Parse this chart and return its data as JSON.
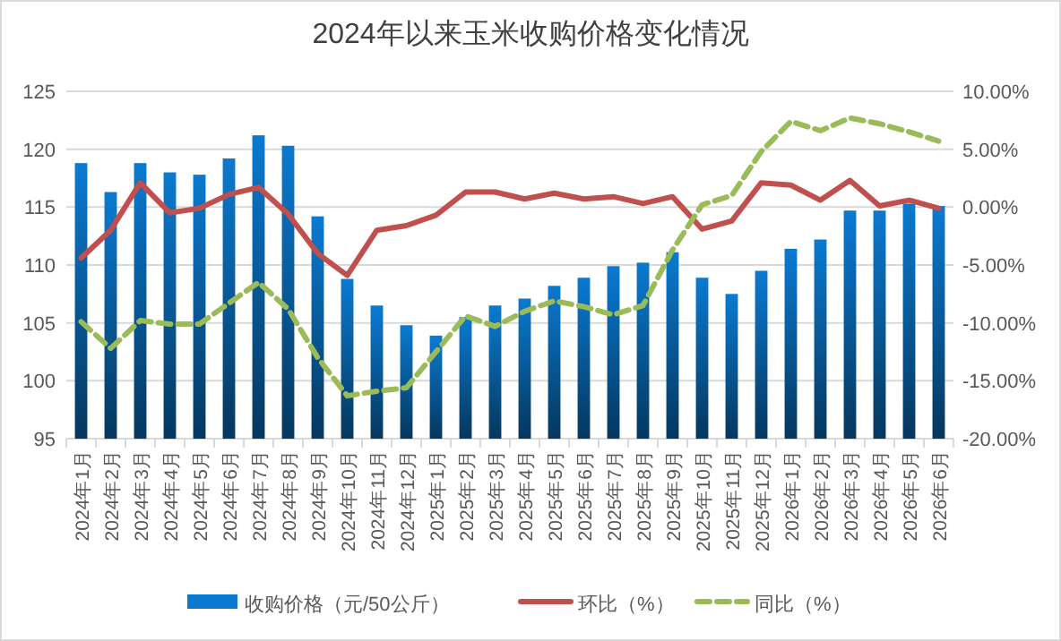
{
  "chart_data": {
    "type": "bar",
    "title": "2024年以来玉米收购价格变化情况",
    "categories": [
      "2024年1月",
      "2024年2月",
      "2024年3月",
      "2024年4月",
      "2024年5月",
      "2024年6月",
      "2024年7月",
      "2024年8月",
      "2024年9月",
      "2024年10月",
      "2024年11月",
      "2024年12月",
      "2025年1月",
      "2025年2月",
      "2025年3月",
      "2025年4月",
      "2025年5月",
      "2025年6月",
      "2025年7月",
      "2025年8月",
      "2025年9月",
      "2025年10月",
      "2025年11月",
      "2025年12月",
      "2026年1月",
      "2026年2月",
      "2026年3月",
      "2026年4月",
      "2026年5月",
      "2026年6月"
    ],
    "series": [
      {
        "name": "收购价格（元/50公斤）",
        "type": "bar",
        "color": "#0a7ad0",
        "values": [
          118.8,
          116.3,
          118.8,
          118.0,
          117.8,
          119.2,
          121.2,
          120.3,
          114.2,
          108.8,
          106.5,
          104.8,
          103.9,
          105.5,
          106.5,
          107.1,
          108.2,
          108.9,
          109.9,
          110.2,
          111.1,
          108.9,
          107.5,
          109.5,
          111.4,
          112.2,
          114.7,
          114.7,
          115.3,
          115.1
        ]
      },
      {
        "name": "环比（%）",
        "type": "line",
        "axis": "y2",
        "color": "#c0504d",
        "line_style": "solid",
        "values": [
          -4.4,
          -2.0,
          2.1,
          -0.5,
          -0.1,
          1.1,
          1.7,
          -0.6,
          -4.0,
          -5.9,
          -2.0,
          -1.6,
          -0.7,
          1.3,
          1.3,
          0.7,
          1.2,
          0.7,
          0.9,
          0.3,
          0.9,
          -1.9,
          -1.2,
          2.1,
          1.9,
          0.6,
          2.3,
          0.1,
          0.6,
          -0.1
        ]
      },
      {
        "name": "同比（%）",
        "type": "line",
        "axis": "y2",
        "color": "#9bbb59",
        "line_style": "dashed",
        "values": [
          -9.9,
          -12.2,
          -9.8,
          -10.1,
          -10.1,
          -8.3,
          -6.5,
          -8.8,
          -13.0,
          -16.3,
          -15.9,
          -15.6,
          -12.5,
          -9.4,
          -10.3,
          -9.0,
          -8.1,
          -8.6,
          -9.3,
          -8.5,
          -3.7,
          0.2,
          1.0,
          4.8,
          7.4,
          6.6,
          7.7,
          7.2,
          6.5,
          5.7
        ]
      }
    ],
    "ylim": [
      95,
      125
    ],
    "yticks": [
      95,
      100,
      105,
      110,
      115,
      120,
      125
    ],
    "y2lim": [
      -20,
      10
    ],
    "y2ticks": [
      {
        "value": -20,
        "label": "-20.00%"
      },
      {
        "value": -15,
        "label": "-15.00%"
      },
      {
        "value": -10,
        "label": "-10.00%"
      },
      {
        "value": -5,
        "label": "-5.00%"
      },
      {
        "value": 0,
        "label": "0.00%"
      },
      {
        "value": 5,
        "label": "5.00%"
      },
      {
        "value": 10,
        "label": "10.00%"
      }
    ],
    "grid": "y",
    "legend": "bottom"
  }
}
